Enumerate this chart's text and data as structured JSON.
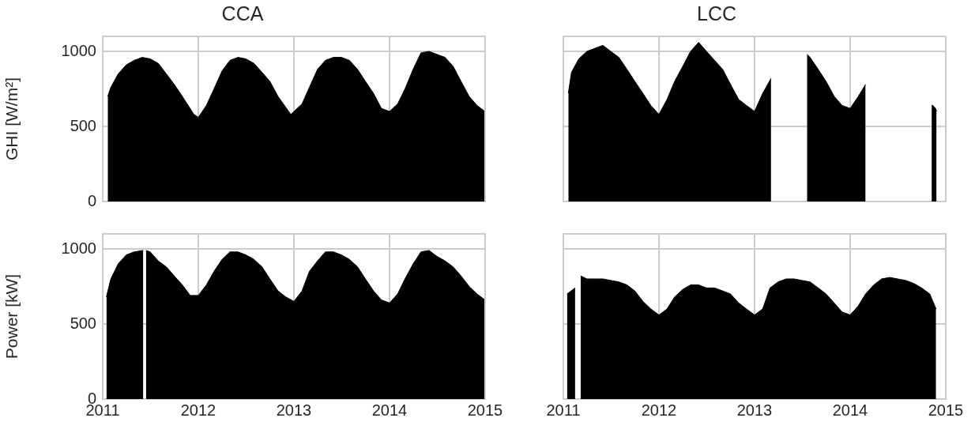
{
  "chart_data": [
    {
      "type": "area",
      "title": "CCA",
      "ylabel": "GHI [W/m²]",
      "color": "#000000",
      "grid": true,
      "tick_labels": "y",
      "xlim": [
        "2011",
        "2015"
      ],
      "xticks": [
        "2011",
        "2012",
        "2013",
        "2014",
        "2015"
      ],
      "ylim": [
        0,
        1100
      ],
      "yticks": [
        0,
        500,
        1000
      ],
      "x": [
        "2011-01-20",
        "2011-02-01",
        "2011-03-01",
        "2011-04-01",
        "2011-05-01",
        "2011-06-01",
        "2011-07-01",
        "2011-08-01",
        "2011-09-01",
        "2011-10-01",
        "2011-11-01",
        "2011-12-15",
        "2012-01-01",
        "2012-02-01",
        "2012-03-01",
        "2012-04-01",
        "2012-05-01",
        "2012-06-01",
        "2012-07-01",
        "2012-08-01",
        "2012-09-01",
        "2012-10-01",
        "2012-11-01",
        "2012-12-20",
        "2013-02-01",
        "2013-03-01",
        "2013-04-01",
        "2013-05-01",
        "2013-06-01",
        "2013-07-01",
        "2013-08-01",
        "2013-09-01",
        "2013-10-01",
        "2013-11-01",
        "2013-12-01",
        "2014-01-01",
        "2014-02-01",
        "2014-03-01",
        "2014-04-01",
        "2014-05-01",
        "2014-06-01",
        "2014-07-01",
        "2014-08-01",
        "2014-09-01",
        "2014-10-01",
        "2014-11-01",
        "2014-12-01",
        "2014-12-31"
      ],
      "values": [
        700,
        760,
        850,
        910,
        940,
        960,
        950,
        920,
        850,
        780,
        700,
        580,
        560,
        640,
        750,
        870,
        940,
        960,
        950,
        920,
        860,
        800,
        700,
        580,
        650,
        760,
        880,
        940,
        960,
        960,
        940,
        880,
        800,
        720,
        620,
        600,
        650,
        750,
        880,
        990,
        1000,
        980,
        960,
        900,
        800,
        700,
        640,
        600
      ]
    },
    {
      "type": "area",
      "title": "LCC",
      "color": "#000000",
      "grid": true,
      "tick_labels": false,
      "xlim": [
        "2011",
        "2015"
      ],
      "xticks": [
        "2011",
        "2012",
        "2013",
        "2014",
        "2015"
      ],
      "ylim": [
        0,
        1100
      ],
      "yticks": [
        0,
        500,
        1000
      ],
      "x": [
        "2011-01-20",
        "2011-02-01",
        "2011-03-01",
        "2011-04-01",
        "2011-05-01",
        "2011-06-01",
        "2011-07-01",
        "2011-08-01",
        "2011-09-01",
        "2011-10-01",
        "2011-11-01",
        "2011-12-01",
        "2012-01-01",
        "2012-02-01",
        "2012-03-01",
        "2012-04-01",
        "2012-05-01",
        "2012-06-01",
        "2012-07-01",
        "2012-08-01",
        "2012-09-01",
        "2012-10-01",
        "2012-11-01",
        "2012-12-01",
        "2013-01-01",
        "2013-02-01",
        "2013-03-05",
        "2013-05-01",
        "2013-07-20",
        "2013-08-01",
        "2013-09-01",
        "2013-10-01",
        "2013-11-01",
        "2013-12-01",
        "2014-01-01",
        "2014-02-01",
        "2014-03-01",
        "2014-07-01",
        "2014-11-08",
        "2014-11-13",
        "2014-11-18",
        "2014-11-23",
        "2014-11-27"
      ],
      "values": [
        720,
        860,
        950,
        1000,
        1020,
        1040,
        1000,
        960,
        880,
        800,
        720,
        640,
        580,
        680,
        800,
        900,
        1000,
        1060,
        1000,
        940,
        880,
        780,
        680,
        640,
        600,
        720,
        820,
        null,
        980,
        960,
        880,
        800,
        700,
        640,
        620,
        700,
        780,
        null,
        640,
        640,
        630,
        620,
        600
      ]
    },
    {
      "type": "area",
      "ylabel": "Power [kW]",
      "color": "#000000",
      "grid": true,
      "xlim": [
        "2011",
        "2015"
      ],
      "xticks": [
        "2011",
        "2012",
        "2013",
        "2014",
        "2015"
      ],
      "ylim": [
        0,
        1100
      ],
      "yticks": [
        0,
        500,
        1000
      ],
      "x": [
        "2011-01-15",
        "2011-02-01",
        "2011-03-01",
        "2011-04-01",
        "2011-05-01",
        "2011-06-05",
        "2011-06-10",
        "2011-06-15",
        "2011-07-01",
        "2011-08-01",
        "2011-09-01",
        "2011-10-01",
        "2011-11-01",
        "2011-12-01",
        "2012-01-01",
        "2012-02-01",
        "2012-03-01",
        "2012-04-01",
        "2012-05-01",
        "2012-06-01",
        "2012-07-01",
        "2012-08-01",
        "2012-09-01",
        "2012-10-01",
        "2012-11-01",
        "2012-12-01",
        "2013-01-01",
        "2013-02-01",
        "2013-03-01",
        "2013-04-01",
        "2013-05-01",
        "2013-06-01",
        "2013-07-01",
        "2013-08-01",
        "2013-09-01",
        "2013-10-01",
        "2013-11-01",
        "2013-12-01",
        "2014-01-01",
        "2014-02-01",
        "2014-03-01",
        "2014-04-01",
        "2014-05-01",
        "2014-06-01",
        "2014-07-01",
        "2014-08-01",
        "2014-09-01",
        "2014-10-01",
        "2014-11-01",
        "2014-12-01",
        "2014-12-31"
      ],
      "values": [
        680,
        800,
        900,
        960,
        980,
        990,
        null,
        990,
        980,
        920,
        880,
        820,
        760,
        690,
        690,
        760,
        850,
        930,
        980,
        980,
        960,
        930,
        880,
        800,
        720,
        680,
        650,
        720,
        850,
        920,
        980,
        980,
        960,
        930,
        880,
        800,
        720,
        660,
        640,
        700,
        800,
        900,
        980,
        990,
        950,
        920,
        880,
        820,
        750,
        700,
        660
      ]
    },
    {
      "type": "area",
      "color": "#000000",
      "grid": true,
      "tick_labels": "x",
      "xlim": [
        "2011",
        "2015"
      ],
      "xticks": [
        "2011",
        "2012",
        "2013",
        "2014",
        "2015"
      ],
      "ylim": [
        0,
        1100
      ],
      "yticks": [
        0,
        500,
        1000
      ],
      "x": [
        "2011-01-15",
        "2011-02-15",
        "2011-02-25",
        "2011-03-08",
        "2011-04-01",
        "2011-05-01",
        "2011-06-01",
        "2011-07-01",
        "2011-08-01",
        "2011-09-01",
        "2011-10-01",
        "2011-11-01",
        "2011-12-01",
        "2012-01-01",
        "2012-02-01",
        "2012-03-01",
        "2012-04-01",
        "2012-05-01",
        "2012-06-01",
        "2012-07-01",
        "2012-08-01",
        "2012-09-01",
        "2012-10-01",
        "2012-11-01",
        "2012-12-01",
        "2013-01-01",
        "2013-02-01",
        "2013-03-01",
        "2013-04-01",
        "2013-05-01",
        "2013-06-01",
        "2013-07-01",
        "2013-08-01",
        "2013-09-01",
        "2013-10-01",
        "2013-11-01",
        "2013-12-01",
        "2014-01-01",
        "2014-02-01",
        "2014-03-01",
        "2014-04-01",
        "2014-05-01",
        "2014-06-01",
        "2014-07-01",
        "2014-08-01",
        "2014-09-01",
        "2014-10-01",
        "2014-11-01",
        "2014-11-25"
      ],
      "values": [
        700,
        740,
        null,
        820,
        800,
        800,
        800,
        790,
        780,
        760,
        720,
        650,
        600,
        560,
        600,
        680,
        730,
        760,
        760,
        740,
        740,
        720,
        700,
        640,
        600,
        560,
        600,
        740,
        780,
        800,
        800,
        790,
        780,
        740,
        700,
        640,
        580,
        560,
        620,
        700,
        760,
        800,
        810,
        800,
        790,
        770,
        740,
        700,
        600
      ]
    }
  ]
}
